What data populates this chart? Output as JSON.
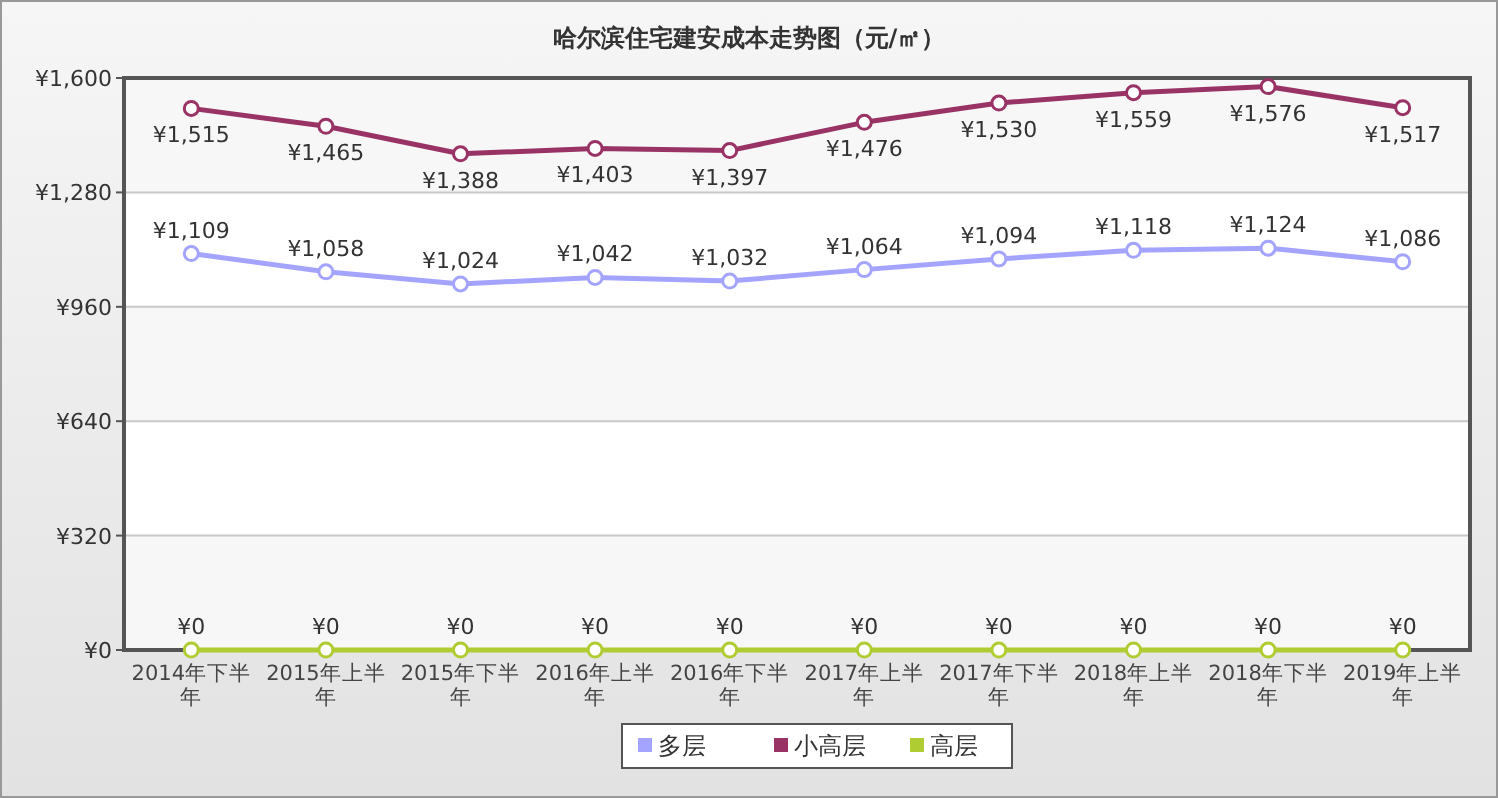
{
  "chart_data": {
    "type": "line",
    "title": "哈尔滨住宅建安成本走势图（元/㎡）",
    "categories": [
      "2014年下半年",
      "2015年上半年",
      "2015年下半年",
      "2016年上半年",
      "2016年下半年",
      "2017年上半年",
      "2017年下半年",
      "2018年上半年",
      "2018年下半年",
      "2019年上半年"
    ],
    "series": [
      {
        "name": "多层",
        "color": "#a4a4ff",
        "values": [
          1109,
          1058,
          1024,
          1042,
          1032,
          1064,
          1094,
          1118,
          1124,
          1086
        ],
        "value_labels": [
          "¥1,109",
          "¥1,058",
          "¥1,024",
          "¥1,042",
          "¥1,032",
          "¥1,064",
          "¥1,094",
          "¥1,118",
          "¥1,124",
          "¥1,086"
        ]
      },
      {
        "name": "小高层",
        "color": "#993366",
        "values": [
          1515,
          1465,
          1388,
          1403,
          1397,
          1476,
          1530,
          1559,
          1576,
          1517
        ],
        "value_labels": [
          "¥1,515",
          "¥1,465",
          "¥1,388",
          "¥1,403",
          "¥1,397",
          "¥1,476",
          "¥1,530",
          "¥1,559",
          "¥1,576",
          "¥1,517"
        ]
      },
      {
        "name": "高层",
        "color": "#b0cc33",
        "values": [
          0,
          0,
          0,
          0,
          0,
          0,
          0,
          0,
          0,
          0
        ],
        "value_labels": [
          "¥0",
          "¥0",
          "¥0",
          "¥0",
          "¥0",
          "¥0",
          "¥0",
          "¥0",
          "¥0",
          "¥0"
        ]
      }
    ],
    "ylim": [
      0,
      1600
    ],
    "yticks": [
      {
        "value": 0,
        "label": "¥0"
      },
      {
        "value": 320,
        "label": "¥320"
      },
      {
        "value": 640,
        "label": "¥640"
      },
      {
        "value": 960,
        "label": "¥960"
      },
      {
        "value": 1280,
        "label": "¥1,280"
      },
      {
        "value": 1600,
        "label": "¥1,600"
      }
    ],
    "grid": "y",
    "legend": "bottom",
    "marker": "circle",
    "line_style": "solid"
  }
}
